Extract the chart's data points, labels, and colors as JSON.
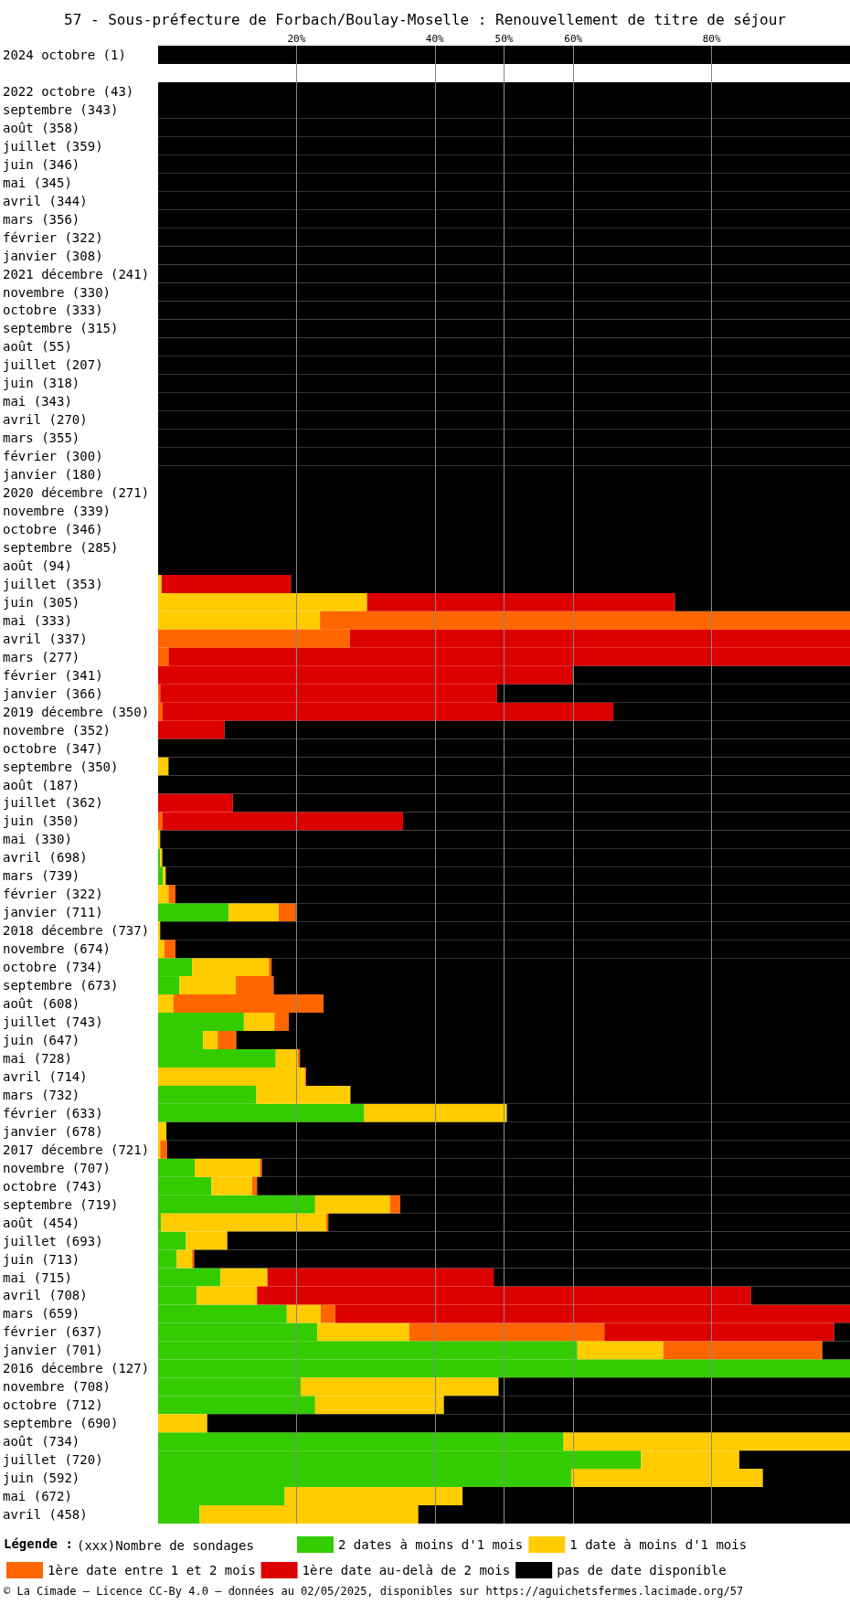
{
  "chart_data": {
    "type": "bar",
    "orientation": "horizontal",
    "stacked": true,
    "title": "57 - Sous-préfecture de Forbach/Boulay-Moselle : Renouvellement de titre de séjour",
    "categories": [
      "2024 octobre (1)",
      null,
      "2022 octobre (43)",
      "septembre (343)",
      "août (358)",
      "juillet (359)",
      "juin (346)",
      "mai (345)",
      "avril (344)",
      "mars (356)",
      "février (322)",
      "janvier (308)",
      "2021 décembre (241)",
      "novembre (330)",
      "octobre (333)",
      "septembre (315)",
      "août (55)",
      "juillet (207)",
      "juin (318)",
      "mai (343)",
      "avril (270)",
      "mars (355)",
      "février (300)",
      "janvier (180)",
      "2020 décembre (271)",
      "novembre (339)",
      "octobre (346)",
      "septembre (285)",
      "août (94)",
      "juillet (353)",
      "juin (305)",
      "mai (333)",
      "avril (337)",
      "mars (277)",
      "février (341)",
      "janvier (366)",
      "2019 décembre (350)",
      "novembre (352)",
      "octobre (347)",
      "septembre (350)",
      "août (187)",
      "juillet (362)",
      "juin (350)",
      "mai (330)",
      "avril (698)",
      "mars (739)",
      "février (322)",
      "janvier (711)",
      "2018 décembre (737)",
      "novembre (674)",
      "octobre (734)",
      "septembre (673)",
      "août (608)",
      "juillet (743)",
      "juin (647)",
      "mai (728)",
      "avril (714)",
      "mars (732)",
      "février (633)",
      "janvier (678)",
      "2017 décembre (721)",
      "novembre (707)",
      "octobre (743)",
      "septembre (719)",
      "août (454)",
      "juillet (693)",
      "juin (713)",
      "mai (715)",
      "avril (708)",
      "mars (659)",
      "février (637)",
      "janvier (701)",
      "2016 décembre (127)",
      "novembre (708)",
      "octobre (712)",
      "septembre (690)",
      "août (734)",
      "juillet (720)",
      "juin (592)",
      "mai (672)",
      "avril (458)"
    ],
    "series": [
      {
        "name": "2 dates à moins d'1 mois",
        "color": "#33cc00",
        "values": [
          0,
          null,
          0,
          0,
          0,
          0,
          0,
          0,
          0,
          0,
          0,
          0,
          0,
          0,
          0,
          0,
          0,
          0,
          0,
          0,
          0,
          0,
          0,
          0,
          0,
          0,
          0,
          0,
          0,
          0,
          0,
          0,
          0,
          0,
          0,
          0,
          0,
          0,
          0,
          0,
          0,
          0,
          0,
          0,
          0.3,
          0.7,
          0,
          10.2,
          0,
          0,
          4.9,
          3.1,
          0,
          12.4,
          6.5,
          17.0,
          0,
          14.2,
          29.8,
          0,
          0,
          5.3,
          7.7,
          22.7,
          0.4,
          4.0,
          2.7,
          9.0,
          5.6,
          18.6,
          23.0,
          60.6,
          100,
          20.6,
          22.7,
          0,
          58.6,
          69.8,
          59.7,
          18.3,
          6.0
        ]
      },
      {
        "name": "1 date à moins d'1 mois",
        "color": "#ffcc00",
        "values": [
          0,
          null,
          0,
          0,
          0,
          0,
          0,
          0,
          0,
          0,
          0,
          0,
          0,
          0,
          0,
          0,
          0,
          0,
          0,
          0,
          0,
          0,
          0,
          0,
          0,
          0,
          0,
          0,
          0,
          0.5,
          30.2,
          23.4,
          0,
          0,
          0,
          0,
          0,
          0,
          0,
          1.5,
          0,
          0,
          0,
          0.3,
          0.3,
          0.4,
          1.5,
          7.2,
          0.3,
          0.9,
          11.1,
          8.1,
          2.2,
          4.4,
          2.1,
          3.2,
          21.2,
          13.6,
          20.6,
          1.2,
          0.3,
          9.4,
          5.9,
          10.8,
          23.9,
          6.0,
          2.2,
          6.8,
          8.7,
          4.9,
          13.3,
          12.4,
          0,
          28.6,
          18.6,
          7.1,
          41.4,
          14.2,
          27.7,
          25.7,
          31.6
        ]
      },
      {
        "name": "1ère date entre 1 et 2 mois",
        "color": "#ff6600",
        "values": [
          0,
          null,
          0,
          0,
          0,
          0,
          0,
          0,
          0,
          0,
          0,
          0,
          0,
          0,
          0,
          0,
          0,
          0,
          0,
          0,
          0,
          0,
          0,
          0,
          0,
          0,
          0,
          0,
          0,
          0,
          0,
          76.6,
          27.7,
          1.5,
          0,
          0.3,
          0.6,
          0,
          0,
          0,
          0,
          0,
          0.6,
          0,
          0,
          0,
          1.0,
          2.5,
          0,
          1.6,
          0.4,
          5.5,
          21.7,
          2.1,
          2.7,
          0.3,
          0.2,
          0,
          0,
          0,
          1.0,
          0.3,
          0.7,
          1.5,
          0.3,
          0,
          0.3,
          0,
          0,
          2.1,
          28.2,
          23.0,
          0,
          0,
          0,
          0,
          0,
          0,
          0,
          0,
          0
        ]
      },
      {
        "name": "1ère date au-delà de 2 mois",
        "color": "#dd0000",
        "values": [
          0,
          null,
          0,
          0,
          0,
          0,
          0,
          0,
          0,
          0,
          0,
          0,
          0,
          0,
          0,
          0,
          0,
          0,
          0,
          0,
          0,
          0,
          0,
          0,
          0,
          0,
          0,
          0,
          0,
          18.7,
          44.5,
          0,
          72.3,
          98.5,
          59.9,
          48.7,
          65.2,
          9.6,
          0,
          0,
          0,
          10.8,
          34.8,
          0,
          0,
          0,
          0,
          0,
          0,
          0,
          0,
          0,
          0,
          0,
          0,
          0,
          0,
          0,
          0,
          0,
          0,
          0,
          0,
          0,
          0,
          0,
          0,
          32.7,
          71.4,
          74.4,
          33.2,
          0,
          0,
          0,
          0,
          0,
          0,
          0,
          0,
          0,
          0
        ]
      },
      {
        "name": "pas de date disponible",
        "color": "#000000",
        "values": [
          100,
          null,
          100,
          100,
          100,
          100,
          100,
          100,
          100,
          100,
          100,
          100,
          100,
          100,
          100,
          100,
          100,
          100,
          100,
          100,
          100,
          100,
          100,
          100,
          100,
          100,
          100,
          100,
          100,
          80.8,
          25.3,
          0,
          0,
          0,
          40.1,
          51.0,
          34.2,
          90.4,
          100,
          98.5,
          100,
          89.2,
          64.6,
          99.7,
          99.4,
          98.9,
          97.5,
          80.1,
          99.7,
          97.5,
          83.6,
          83.3,
          76.1,
          81.1,
          88.7,
          79.5,
          78.6,
          72.2,
          49.6,
          98.8,
          98.7,
          85.0,
          85.7,
          65.0,
          75.4,
          90.0,
          94.8,
          51.5,
          14.3,
          0,
          2.3,
          4.0,
          0,
          50.8,
          58.7,
          92.9,
          0,
          16.0,
          12.6,
          56.0,
          62.4
        ]
      }
    ],
    "xlim": [
      0,
      100
    ],
    "xticks": [
      {
        "value": 20,
        "label": "20%"
      },
      {
        "value": 40,
        "label": "40%"
      },
      {
        "value": 50,
        "label": "50%"
      },
      {
        "value": 60,
        "label": "60%"
      },
      {
        "value": 80,
        "label": "80%"
      }
    ],
    "grid": "x",
    "legend": "bottom",
    "annotations": [
      "Légende :",
      "(xxx)Nombre de sondages",
      "© La Cimade — Licence CC-By 4.0 — données au 02/05/2025, disponibles sur https://aguichetsfermes.lacimade.org/57"
    ]
  }
}
